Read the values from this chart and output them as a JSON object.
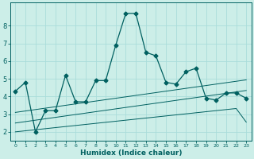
{
  "x": [
    0,
    1,
    2,
    3,
    4,
    5,
    6,
    7,
    8,
    9,
    10,
    11,
    12,
    13,
    14,
    15,
    16,
    17,
    18,
    19,
    20,
    21,
    22,
    23
  ],
  "main_line": [
    4.3,
    4.8,
    2.0,
    3.2,
    3.2,
    5.2,
    3.7,
    3.7,
    4.9,
    4.9,
    6.9,
    8.7,
    8.7,
    6.5,
    6.3,
    4.8,
    4.7,
    5.4,
    5.6,
    3.9,
    3.8,
    4.2,
    4.2,
    3.9
  ],
  "trend1": [
    3.1,
    3.18,
    3.26,
    3.34,
    3.42,
    3.5,
    3.58,
    3.66,
    3.74,
    3.82,
    3.9,
    3.98,
    4.06,
    4.14,
    4.22,
    4.3,
    4.38,
    4.46,
    4.54,
    4.62,
    4.7,
    4.78,
    4.86,
    4.94
  ],
  "trend2": [
    2.5,
    2.58,
    2.66,
    2.74,
    2.82,
    2.9,
    2.98,
    3.06,
    3.14,
    3.22,
    3.3,
    3.38,
    3.46,
    3.54,
    3.62,
    3.7,
    3.78,
    3.86,
    3.94,
    4.02,
    4.1,
    4.18,
    4.26,
    4.34
  ],
  "trend3": [
    2.0,
    2.06,
    2.12,
    2.18,
    2.24,
    2.3,
    2.36,
    2.42,
    2.48,
    2.54,
    2.6,
    2.66,
    2.72,
    2.78,
    2.84,
    2.9,
    2.96,
    3.02,
    3.08,
    3.14,
    3.2,
    3.26,
    3.32,
    2.55
  ],
  "line_color": "#006060",
  "bg_color": "#cceee8",
  "grid_color": "#aaddda",
  "xlabel": "Humidex (Indice chaleur)",
  "xlim": [
    -0.5,
    23.5
  ],
  "ylim": [
    1.5,
    9.3
  ],
  "yticks": [
    2,
    3,
    4,
    5,
    6,
    7,
    8
  ],
  "xticks": [
    0,
    1,
    2,
    3,
    4,
    5,
    6,
    7,
    8,
    9,
    10,
    11,
    12,
    13,
    14,
    15,
    16,
    17,
    18,
    19,
    20,
    21,
    22,
    23
  ],
  "marker": "D",
  "markersize": 2.5
}
